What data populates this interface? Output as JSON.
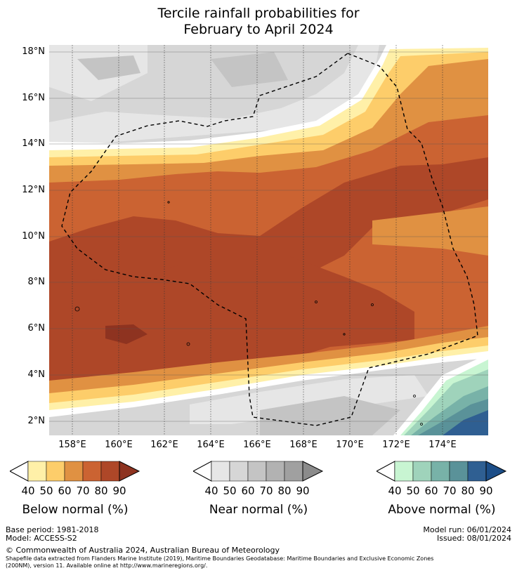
{
  "title_line1": "Tercile rainfall probabilities for",
  "title_line2": "February to April 2024",
  "map": {
    "lat_labels": [
      "18°N",
      "16°N",
      "14°N",
      "12°N",
      "10°N",
      "8°N",
      "6°N",
      "4°N",
      "2°N"
    ],
    "lon_labels": [
      "158°E",
      "160°E",
      "162°E",
      "164°E",
      "166°E",
      "168°E",
      "170°E",
      "172°E",
      "174°E"
    ],
    "below_colors": [
      "#fff0a8",
      "#fdcd6a",
      "#e09142",
      "#cb6332",
      "#ae4728",
      "#8e3320"
    ],
    "near_colors": [
      "#e6e6e6",
      "#d6d6d6",
      "#c4c4c4",
      "#b2b2b2",
      "#a0a0a0",
      "#8b8b8b"
    ],
    "above_colors": [
      "#c8f5d2",
      "#9fd3bb",
      "#78b2a8",
      "#5a9299",
      "#2f5f92",
      "#1c4e88"
    ]
  },
  "colorbars": {
    "ticks": [
      "40",
      "50",
      "60",
      "70",
      "80",
      "90"
    ],
    "below_title": "Below normal (%)",
    "near_title": "Near normal (%)",
    "above_title": "Above normal (%)"
  },
  "footer": {
    "base_period": "Base period: 1981-2018",
    "model": "Model: ACCESS-S2",
    "model_run": "Model run: 06/01/2024",
    "issued": "Issued: 08/01/2024",
    "copyright": "© Commonwealth of Australia 2024, Australian Bureau of Meteorology",
    "shapefile_line1": "Shapefile data extracted from Flanders Marine Institute (2019), Maritime Boundaries Geodatabase: Maritime Boundaries and Exclusive Economic Zones",
    "shapefile_line2": "(200NM), version 11. Available online at http://www.marineregions.org/."
  }
}
